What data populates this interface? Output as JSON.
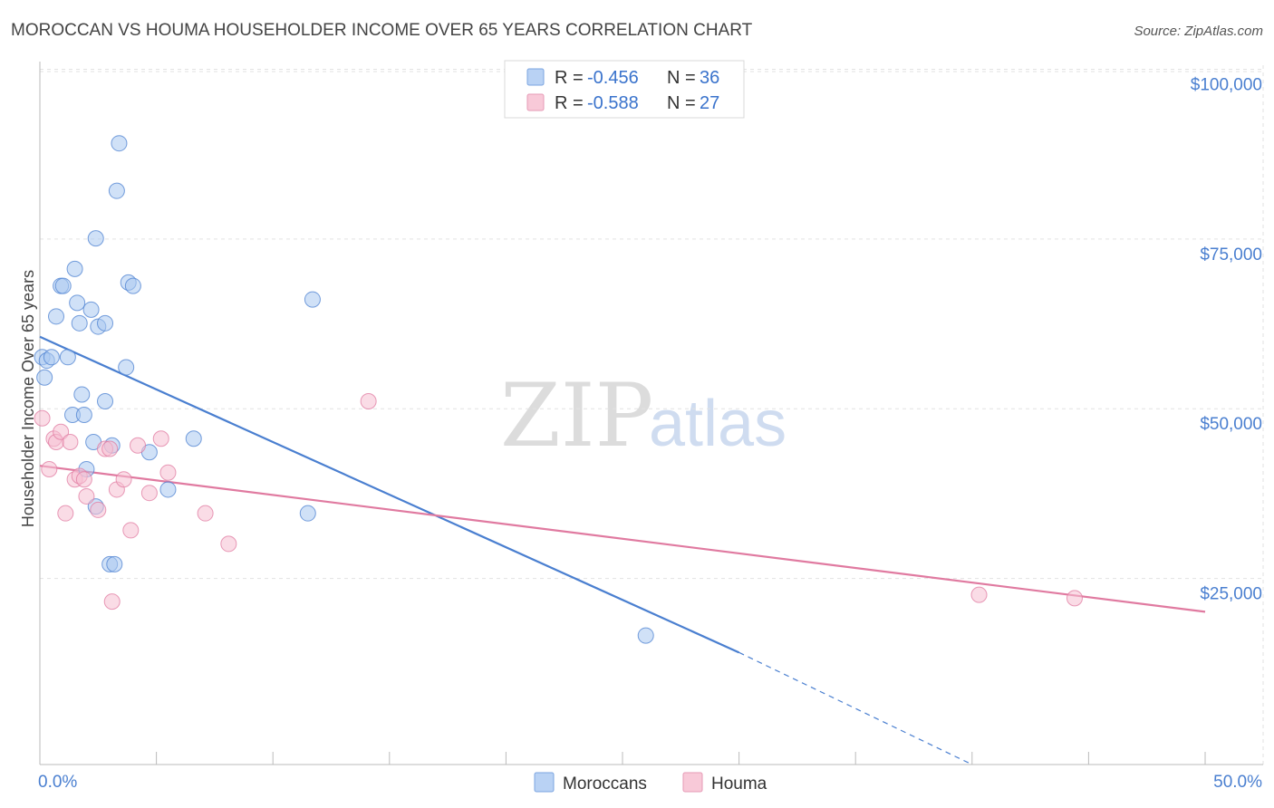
{
  "chart_data": {
    "type": "scatter",
    "title": "MOROCCAN VS HOUMA HOUSEHOLDER INCOME OVER 65 YEARS CORRELATION CHART",
    "source": "Source: ZipAtlas.com",
    "ylabel": "Householder Income Over 65 years",
    "xlabel": "",
    "x_tick_labels": [
      "0.0%",
      "50.0%"
    ],
    "y_tick_labels": [
      "$100,000",
      "$75,000",
      "$50,000",
      "$25,000"
    ],
    "y_ticks": [
      100000,
      75000,
      50000,
      25000
    ],
    "xlim": [
      0,
      50
    ],
    "ylim": [
      0,
      103000
    ],
    "grid": true,
    "watermark": {
      "zip": "ZIP",
      "atlas": "atlas"
    },
    "legend": {
      "position": "top-center",
      "entries": [
        {
          "r_label": "R = ",
          "r_value": "-0.456",
          "n_label": "N = ",
          "n_value": "36"
        },
        {
          "r_label": "R = ",
          "r_value": "-0.588",
          "n_label": "N = ",
          "n_value": "27"
        }
      ]
    },
    "series": [
      {
        "name": "Moroccans",
        "color": "#4a7fd0",
        "fill": "#aac8f0",
        "points": [
          [
            0.1,
            60000
          ],
          [
            0.3,
            59500
          ],
          [
            0.2,
            57000
          ],
          [
            0.5,
            60000
          ],
          [
            0.7,
            66000
          ],
          [
            0.9,
            70500
          ],
          [
            1.0,
            70500
          ],
          [
            1.2,
            60000
          ],
          [
            1.4,
            51500
          ],
          [
            1.5,
            73000
          ],
          [
            1.6,
            68000
          ],
          [
            1.7,
            65000
          ],
          [
            1.8,
            54500
          ],
          [
            1.9,
            51500
          ],
          [
            2.0,
            43500
          ],
          [
            2.2,
            67000
          ],
          [
            2.3,
            47500
          ],
          [
            2.4,
            38000
          ],
          [
            2.5,
            64500
          ],
          [
            2.8,
            65000
          ],
          [
            2.4,
            77500
          ],
          [
            3.0,
            29500
          ],
          [
            3.2,
            29500
          ],
          [
            3.3,
            84500
          ],
          [
            3.4,
            91500
          ],
          [
            3.7,
            58500
          ],
          [
            3.8,
            71000
          ],
          [
            4.0,
            70500
          ],
          [
            2.8,
            53500
          ],
          [
            4.7,
            46000
          ],
          [
            5.5,
            40500
          ],
          [
            6.6,
            48000
          ],
          [
            11.5,
            37000
          ],
          [
            11.7,
            68500
          ],
          [
            26.0,
            19000
          ],
          [
            3.1,
            47000
          ]
        ],
        "trend": {
          "x0": 0,
          "y0": 63000,
          "x1": 30,
          "y1": 16500,
          "dash_to_x": 40,
          "dash_to_y": 0
        }
      },
      {
        "name": "Houma",
        "color": "#e07aa0",
        "fill": "#f5bfd2",
        "points": [
          [
            0.1,
            51000
          ],
          [
            0.4,
            43500
          ],
          [
            0.6,
            48000
          ],
          [
            0.7,
            47500
          ],
          [
            0.9,
            49000
          ],
          [
            1.1,
            37000
          ],
          [
            1.3,
            47500
          ],
          [
            1.5,
            42000
          ],
          [
            1.7,
            42500
          ],
          [
            1.9,
            42000
          ],
          [
            2.0,
            39500
          ],
          [
            2.5,
            37500
          ],
          [
            2.8,
            46500
          ],
          [
            3.0,
            46500
          ],
          [
            3.1,
            24000
          ],
          [
            3.3,
            40500
          ],
          [
            3.6,
            42000
          ],
          [
            3.9,
            34500
          ],
          [
            4.2,
            47000
          ],
          [
            4.7,
            40000
          ],
          [
            5.2,
            48000
          ],
          [
            5.5,
            43000
          ],
          [
            7.1,
            37000
          ],
          [
            8.1,
            32500
          ],
          [
            14.1,
            53500
          ],
          [
            40.3,
            25000
          ],
          [
            44.4,
            24500
          ]
        ],
        "trend": {
          "x0": 0,
          "y0": 44000,
          "x1": 50,
          "y1": 22500
        }
      }
    ]
  }
}
